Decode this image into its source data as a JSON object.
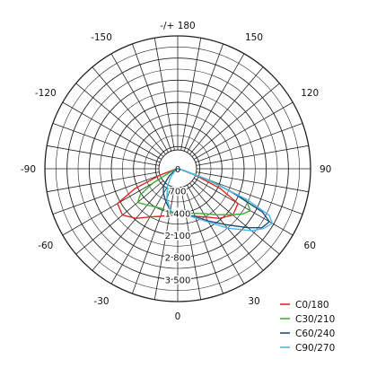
{
  "chart_data": {
    "type": "polar",
    "angle_labels": [
      {
        "angle": 180,
        "text": "-/+ 180"
      },
      {
        "angle": -150,
        "text": "-150"
      },
      {
        "angle": 150,
        "text": "150"
      },
      {
        "angle": -120,
        "text": "-120"
      },
      {
        "angle": 120,
        "text": "120"
      },
      {
        "angle": -90,
        "text": "-90"
      },
      {
        "angle": 90,
        "text": "90"
      },
      {
        "angle": -60,
        "text": "-60"
      },
      {
        "angle": 60,
        "text": "60"
      },
      {
        "angle": -30,
        "text": "-30"
      },
      {
        "angle": 30,
        "text": "30"
      },
      {
        "angle": 0,
        "text": "0"
      }
    ],
    "radial_ticks": [
      {
        "value": 0,
        "text": "0"
      },
      {
        "value": 700,
        "text": "700"
      },
      {
        "value": 1400,
        "text": "1 400"
      },
      {
        "value": 2100,
        "text": "2 100"
      },
      {
        "value": 2800,
        "text": "2 800"
      },
      {
        "value": 3500,
        "text": "3 500"
      }
    ],
    "rmax": 4200,
    "angle_step": 10,
    "series": [
      {
        "name": "C0/180",
        "color": "#e0292b",
        "points": [
          [
            0,
            1450
          ],
          [
            10,
            1500
          ],
          [
            20,
            1600
          ],
          [
            30,
            1760
          ],
          [
            40,
            2050
          ],
          [
            50,
            2280
          ],
          [
            60,
            2200
          ],
          [
            65,
            1500
          ],
          [
            70,
            600
          ],
          [
            75,
            120
          ],
          [
            80,
            20
          ],
          [
            -10,
            1500
          ],
          [
            -20,
            1600
          ],
          [
            -30,
            1760
          ],
          [
            -40,
            2050
          ],
          [
            -50,
            2280
          ],
          [
            -60,
            2200
          ],
          [
            -65,
            1500
          ],
          [
            -70,
            600
          ],
          [
            -75,
            120
          ],
          [
            -80,
            20
          ]
        ]
      },
      {
        "name": "C30/210",
        "color": "#3fae36",
        "points": [
          [
            0,
            1450
          ],
          [
            10,
            1450
          ],
          [
            20,
            1500
          ],
          [
            30,
            1640
          ],
          [
            40,
            1900
          ],
          [
            50,
            2250
          ],
          [
            55,
            2500
          ],
          [
            60,
            2650
          ],
          [
            65,
            2400
          ],
          [
            70,
            1200
          ],
          [
            75,
            180
          ],
          [
            -10,
            1400
          ],
          [
            -20,
            1350
          ],
          [
            -30,
            1400
          ],
          [
            -40,
            1500
          ],
          [
            -50,
            1650
          ],
          [
            -55,
            1450
          ],
          [
            -60,
            900
          ],
          [
            -65,
            300
          ],
          [
            -70,
            60
          ]
        ]
      },
      {
        "name": "C60/240",
        "color": "#1f4e79",
        "points": [
          [
            0,
            1450
          ],
          [
            10,
            1500
          ],
          [
            20,
            1600
          ],
          [
            30,
            1900
          ],
          [
            40,
            2300
          ],
          [
            50,
            2900
          ],
          [
            55,
            3250
          ],
          [
            60,
            3350
          ],
          [
            63,
            3000
          ],
          [
            67,
            1800
          ],
          [
            70,
            900
          ],
          [
            75,
            150
          ],
          [
            -10,
            1350
          ],
          [
            -20,
            1100
          ],
          [
            -30,
            900
          ],
          [
            -40,
            700
          ],
          [
            -50,
            350
          ],
          [
            -60,
            80
          ]
        ]
      },
      {
        "name": "C90/270",
        "color": "#4db6e8",
        "points": [
          [
            0,
            1450
          ],
          [
            10,
            1500
          ],
          [
            20,
            1650
          ],
          [
            30,
            1950
          ],
          [
            40,
            2450
          ],
          [
            50,
            3050
          ],
          [
            55,
            3300
          ],
          [
            60,
            3450
          ],
          [
            63,
            3250
          ],
          [
            66,
            2400
          ],
          [
            70,
            1000
          ],
          [
            75,
            200
          ],
          [
            -10,
            1350
          ],
          [
            -20,
            1000
          ],
          [
            -30,
            650
          ],
          [
            -40,
            350
          ],
          [
            -50,
            120
          ],
          [
            -60,
            20
          ]
        ]
      }
    ],
    "legend_position": "bottom-right"
  }
}
